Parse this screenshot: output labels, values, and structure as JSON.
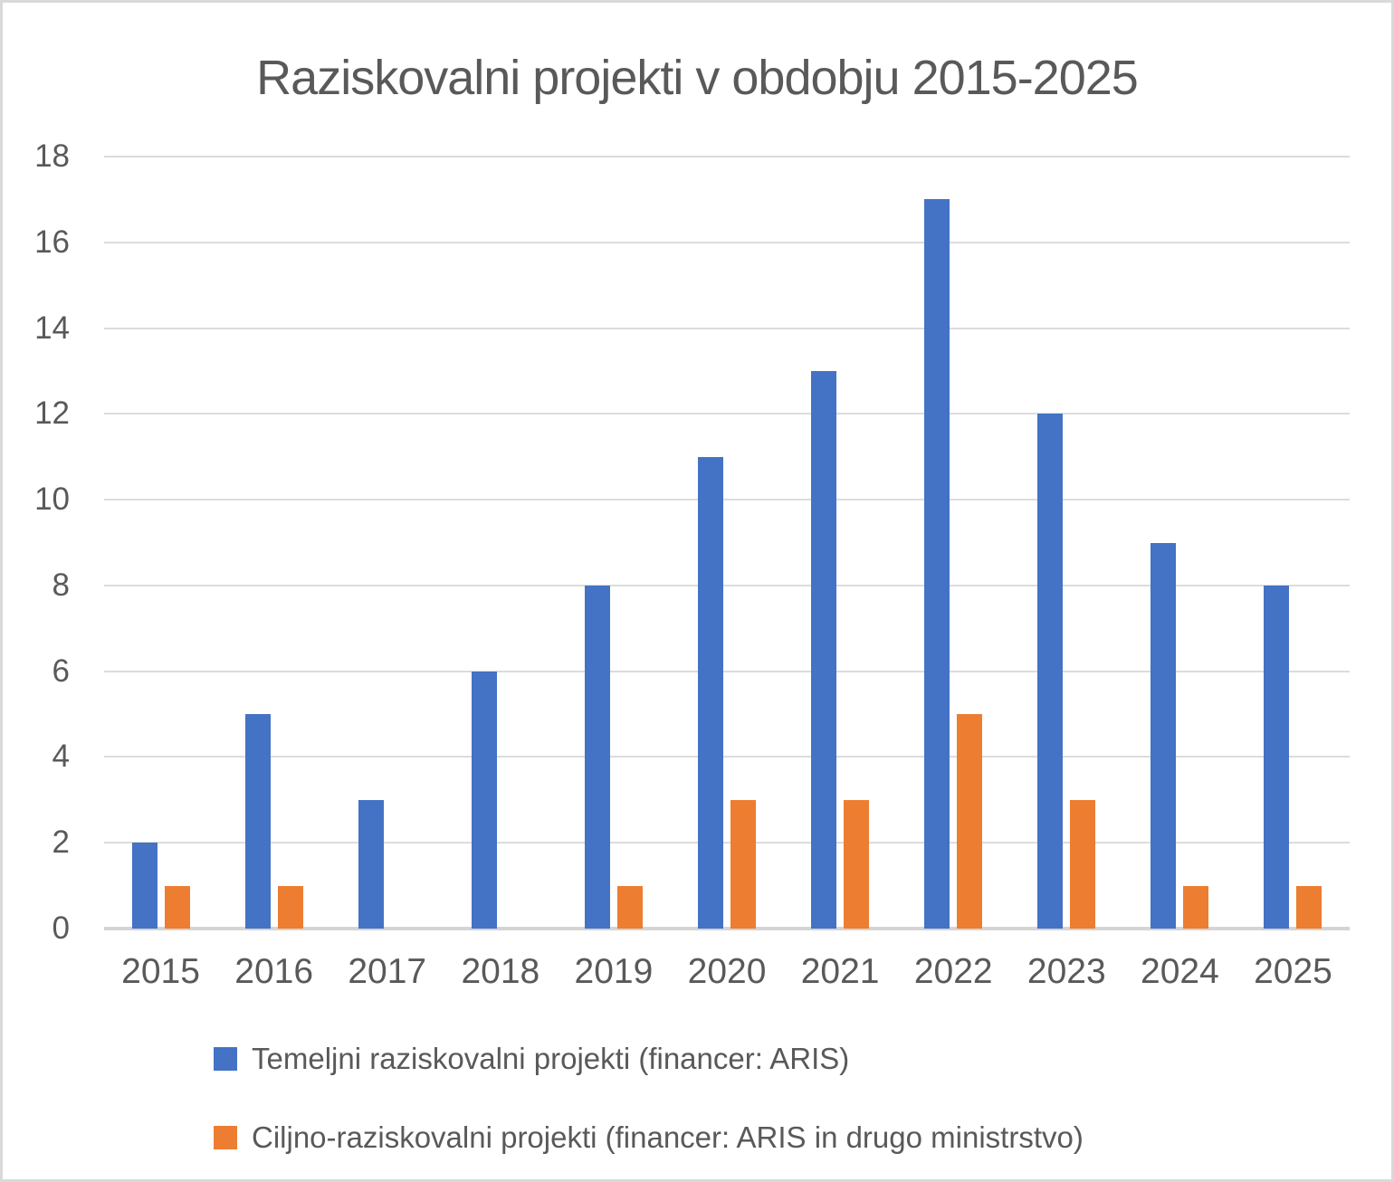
{
  "page": {
    "background_color": "#ffffff",
    "border_color": "#d9d9d9",
    "text_color": "#595959",
    "gridline_color": "#dcdcdc",
    "axis_line_color": "#d4d4d4"
  },
  "chart_data": {
    "type": "bar",
    "title": "Raziskovalni projekti v obdobju 2015-2025",
    "xlabel": "",
    "ylabel": "",
    "categories": [
      "2015",
      "2016",
      "2017",
      "2018",
      "2019",
      "2020",
      "2021",
      "2022",
      "2023",
      "2024",
      "2025"
    ],
    "series": [
      {
        "name": "Temeljni raziskovalni projekti (financer: ARIS)",
        "color": "#4472C4",
        "values": [
          2,
          5,
          3,
          6,
          8,
          11,
          13,
          17,
          12,
          9,
          8
        ]
      },
      {
        "name": "Ciljno-raziskovalni projekti (financer: ARIS in drugo ministrstvo)",
        "color": "#ED7D31",
        "values": [
          1,
          1,
          0,
          0,
          1,
          3,
          3,
          5,
          3,
          1,
          1
        ]
      }
    ],
    "ylim": [
      0,
      18
    ],
    "yticks": [
      0,
      2,
      4,
      6,
      8,
      10,
      12,
      14,
      16,
      18
    ],
    "grid": true,
    "legend_position": "bottom-left"
  }
}
